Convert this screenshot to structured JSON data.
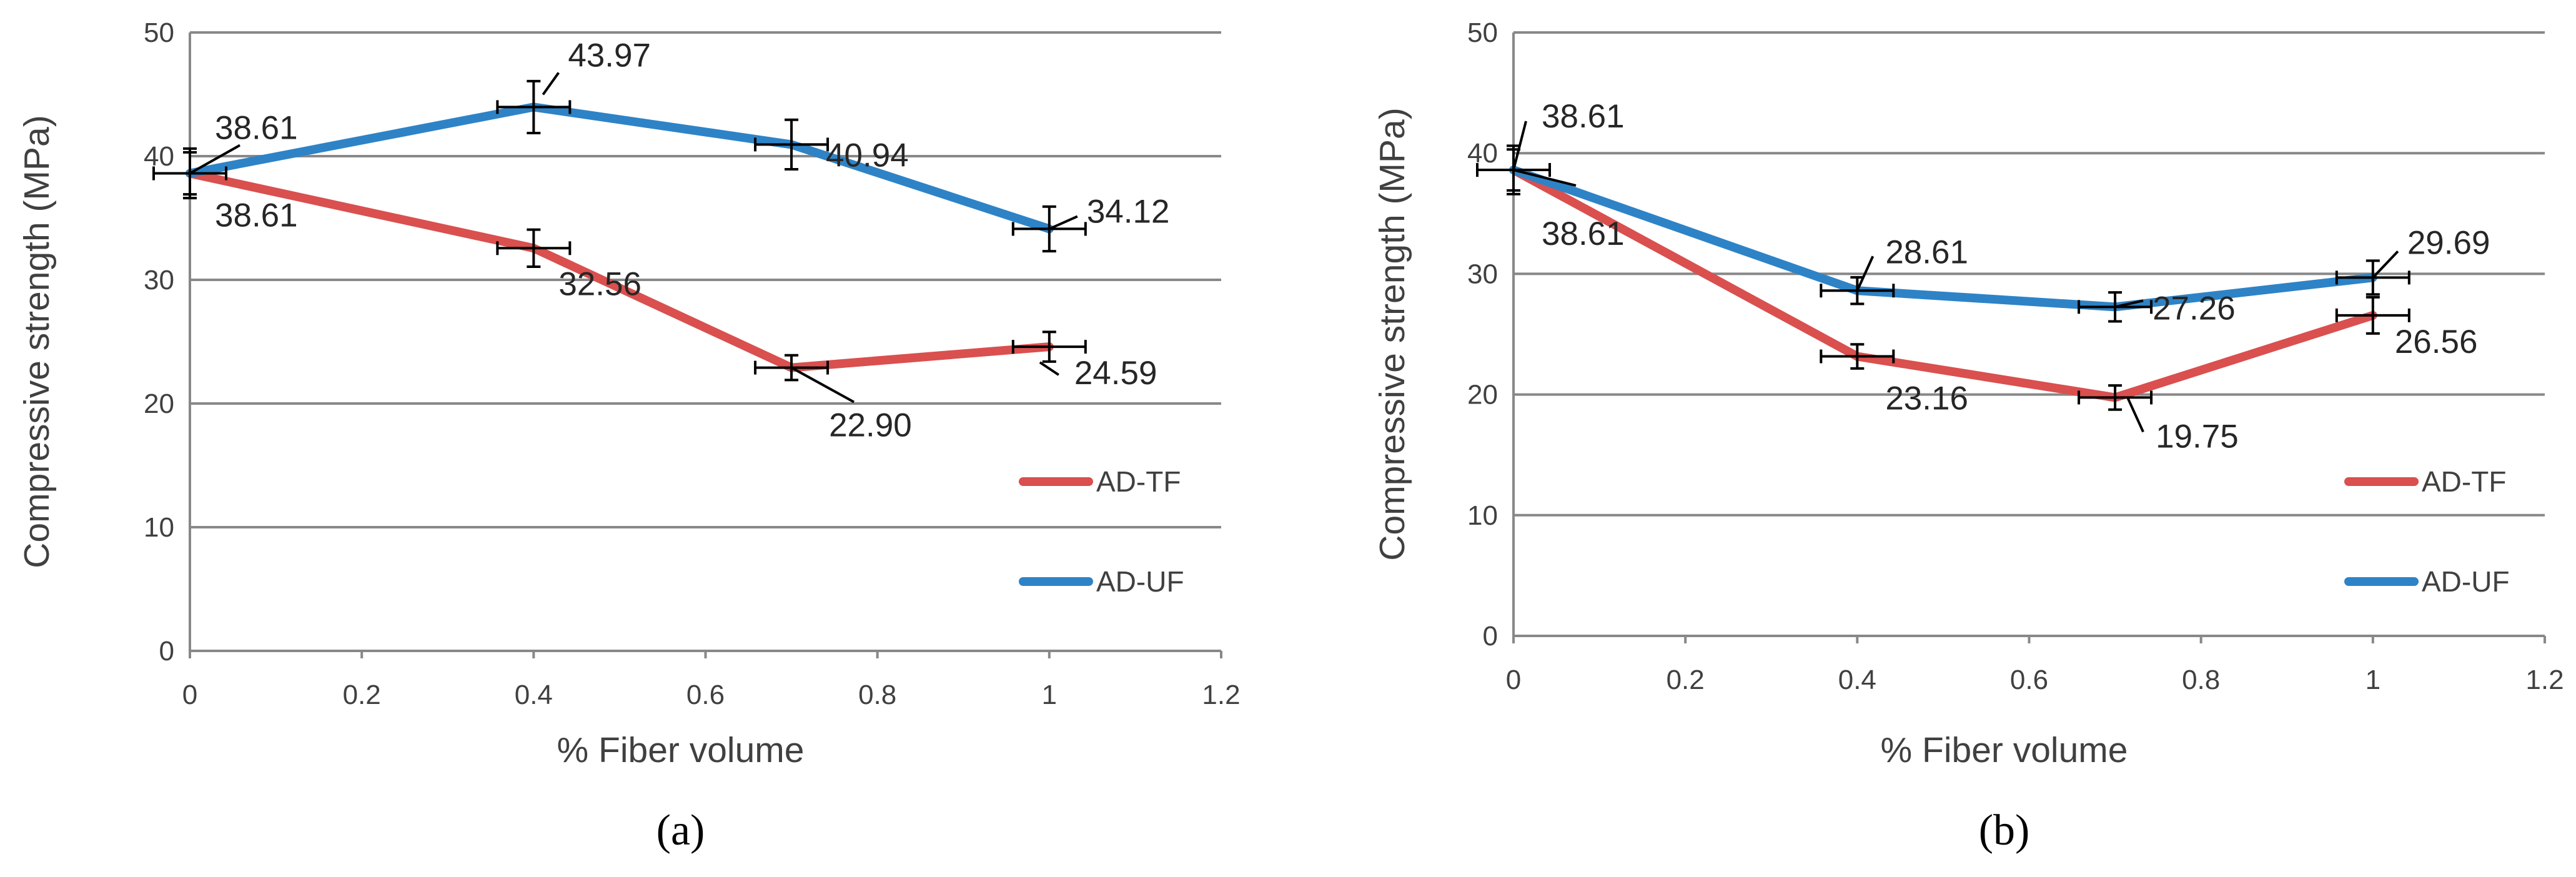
{
  "chart_data": [
    {
      "panel_label": "(a)",
      "type": "line",
      "xlabel": "% Fiber volume",
      "ylabel": "Compressive strength (MPa)",
      "xlim": [
        0,
        1.2
      ],
      "ylim": [
        0,
        50
      ],
      "x_ticks": [
        0,
        0.2,
        0.4,
        0.6,
        0.8,
        1,
        1.2
      ],
      "y_ticks": [
        0,
        10,
        20,
        30,
        40,
        50
      ],
      "grid": true,
      "legend_position": "right",
      "series": [
        {
          "name": "AD-TF",
          "color": "#d9504f",
          "x": [
            0,
            0.4,
            0.7,
            1
          ],
          "values": [
            38.61,
            32.56,
            22.9,
            24.59
          ],
          "labels": [
            "38.61",
            "32.56",
            "22.90",
            "24.59"
          ],
          "error": [
            1.7,
            1.5,
            1.0,
            1.2
          ]
        },
        {
          "name": "AD-UF",
          "color": "#2e83c6",
          "x": [
            0,
            0.4,
            0.7,
            1
          ],
          "values": [
            38.61,
            43.97,
            40.94,
            34.12
          ],
          "labels": [
            "38.61",
            "43.97",
            "40.94",
            "34.12"
          ],
          "error": [
            2.0,
            2.1,
            2.0,
            1.8
          ]
        }
      ]
    },
    {
      "panel_label": "(b)",
      "type": "line",
      "xlabel": "% Fiber volume",
      "ylabel": "Compressive strength (MPa)",
      "xlim": [
        0,
        1.2
      ],
      "ylim": [
        0,
        50
      ],
      "x_ticks": [
        0,
        0.2,
        0.4,
        0.6,
        0.8,
        1,
        1.2
      ],
      "y_ticks": [
        0,
        10,
        20,
        30,
        40,
        50
      ],
      "grid": true,
      "legend_position": "right",
      "series": [
        {
          "name": "AD-TF",
          "color": "#d9504f",
          "x": [
            0,
            0.4,
            0.7,
            1
          ],
          "values": [
            38.61,
            23.16,
            19.75,
            26.56
          ],
          "labels": [
            "38.61",
            "23.16",
            "19.75",
            "26.56"
          ],
          "error": [
            1.7,
            1.0,
            1.0,
            1.5
          ]
        },
        {
          "name": "AD-UF",
          "color": "#2e83c6",
          "x": [
            0,
            0.4,
            0.7,
            1
          ],
          "values": [
            38.61,
            28.61,
            27.26,
            29.69
          ],
          "labels": [
            "38.61",
            "28.61",
            "27.26",
            "29.69"
          ],
          "error": [
            2.0,
            1.1,
            1.2,
            1.4
          ]
        }
      ]
    }
  ]
}
